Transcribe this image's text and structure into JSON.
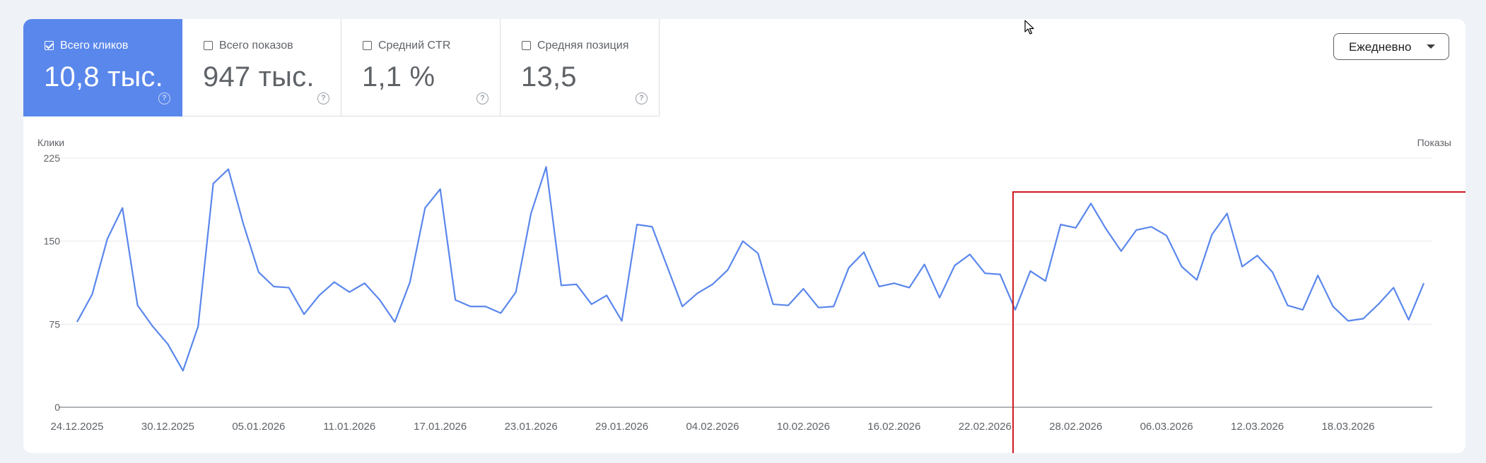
{
  "metrics": [
    {
      "label": "Всего кликов",
      "value": "10,8 тыс.",
      "checked": true
    },
    {
      "label": "Всего показов",
      "value": "947 тыс.",
      "checked": false
    },
    {
      "label": "Средний CTR",
      "value": "1,1 %",
      "checked": false
    },
    {
      "label": "Средняя позиция",
      "value": "13,5",
      "checked": false
    }
  ],
  "help_glyph": "?",
  "period_dropdown": {
    "value": "Ежедневно"
  },
  "colors": {
    "accent": "#5a87ec",
    "line": "#5a87ec",
    "highlight": "#d0191f"
  },
  "chart_data": {
    "type": "line",
    "ylabel": "Клики",
    "y2label": "Показы",
    "ylim": [
      0,
      225
    ],
    "yticks": [
      "225",
      "150",
      "75",
      "0"
    ],
    "x_start": "24.12.2025",
    "x_ticks": [
      "24.12.2025",
      "30.12.2025",
      "05.01.2026",
      "11.01.2026",
      "17.01.2026",
      "23.01.2026",
      "29.01.2026",
      "04.02.2026",
      "10.02.2026",
      "16.02.2026",
      "22.02.2026",
      "28.02.2026",
      "06.03.2026",
      "12.03.2026",
      "18.03.2026"
    ],
    "series": [
      {
        "values": [
          77,
          102,
          152,
          180,
          92,
          73,
          57,
          33,
          73,
          202,
          215,
          165,
          122,
          109,
          108,
          84,
          101,
          113,
          104,
          112,
          97,
          77,
          113,
          180,
          197,
          97,
          91,
          91,
          85,
          104,
          175,
          217,
          110,
          111,
          93,
          101,
          78,
          165,
          163,
          127,
          91,
          103,
          111,
          124,
          150,
          139,
          93,
          92,
          107,
          90,
          91,
          126,
          140,
          109,
          112,
          108,
          129,
          99,
          128,
          138,
          121,
          120,
          88,
          123,
          114,
          165,
          162,
          184,
          161,
          141,
          160,
          163,
          155,
          127,
          115,
          156,
          175,
          127,
          137,
          122,
          92,
          88,
          119,
          91,
          78,
          80,
          93,
          108,
          79,
          112
        ]
      }
    ]
  },
  "highlight_box": {
    "start_date": "24.02.2026",
    "end_date": "22.03.2026"
  }
}
